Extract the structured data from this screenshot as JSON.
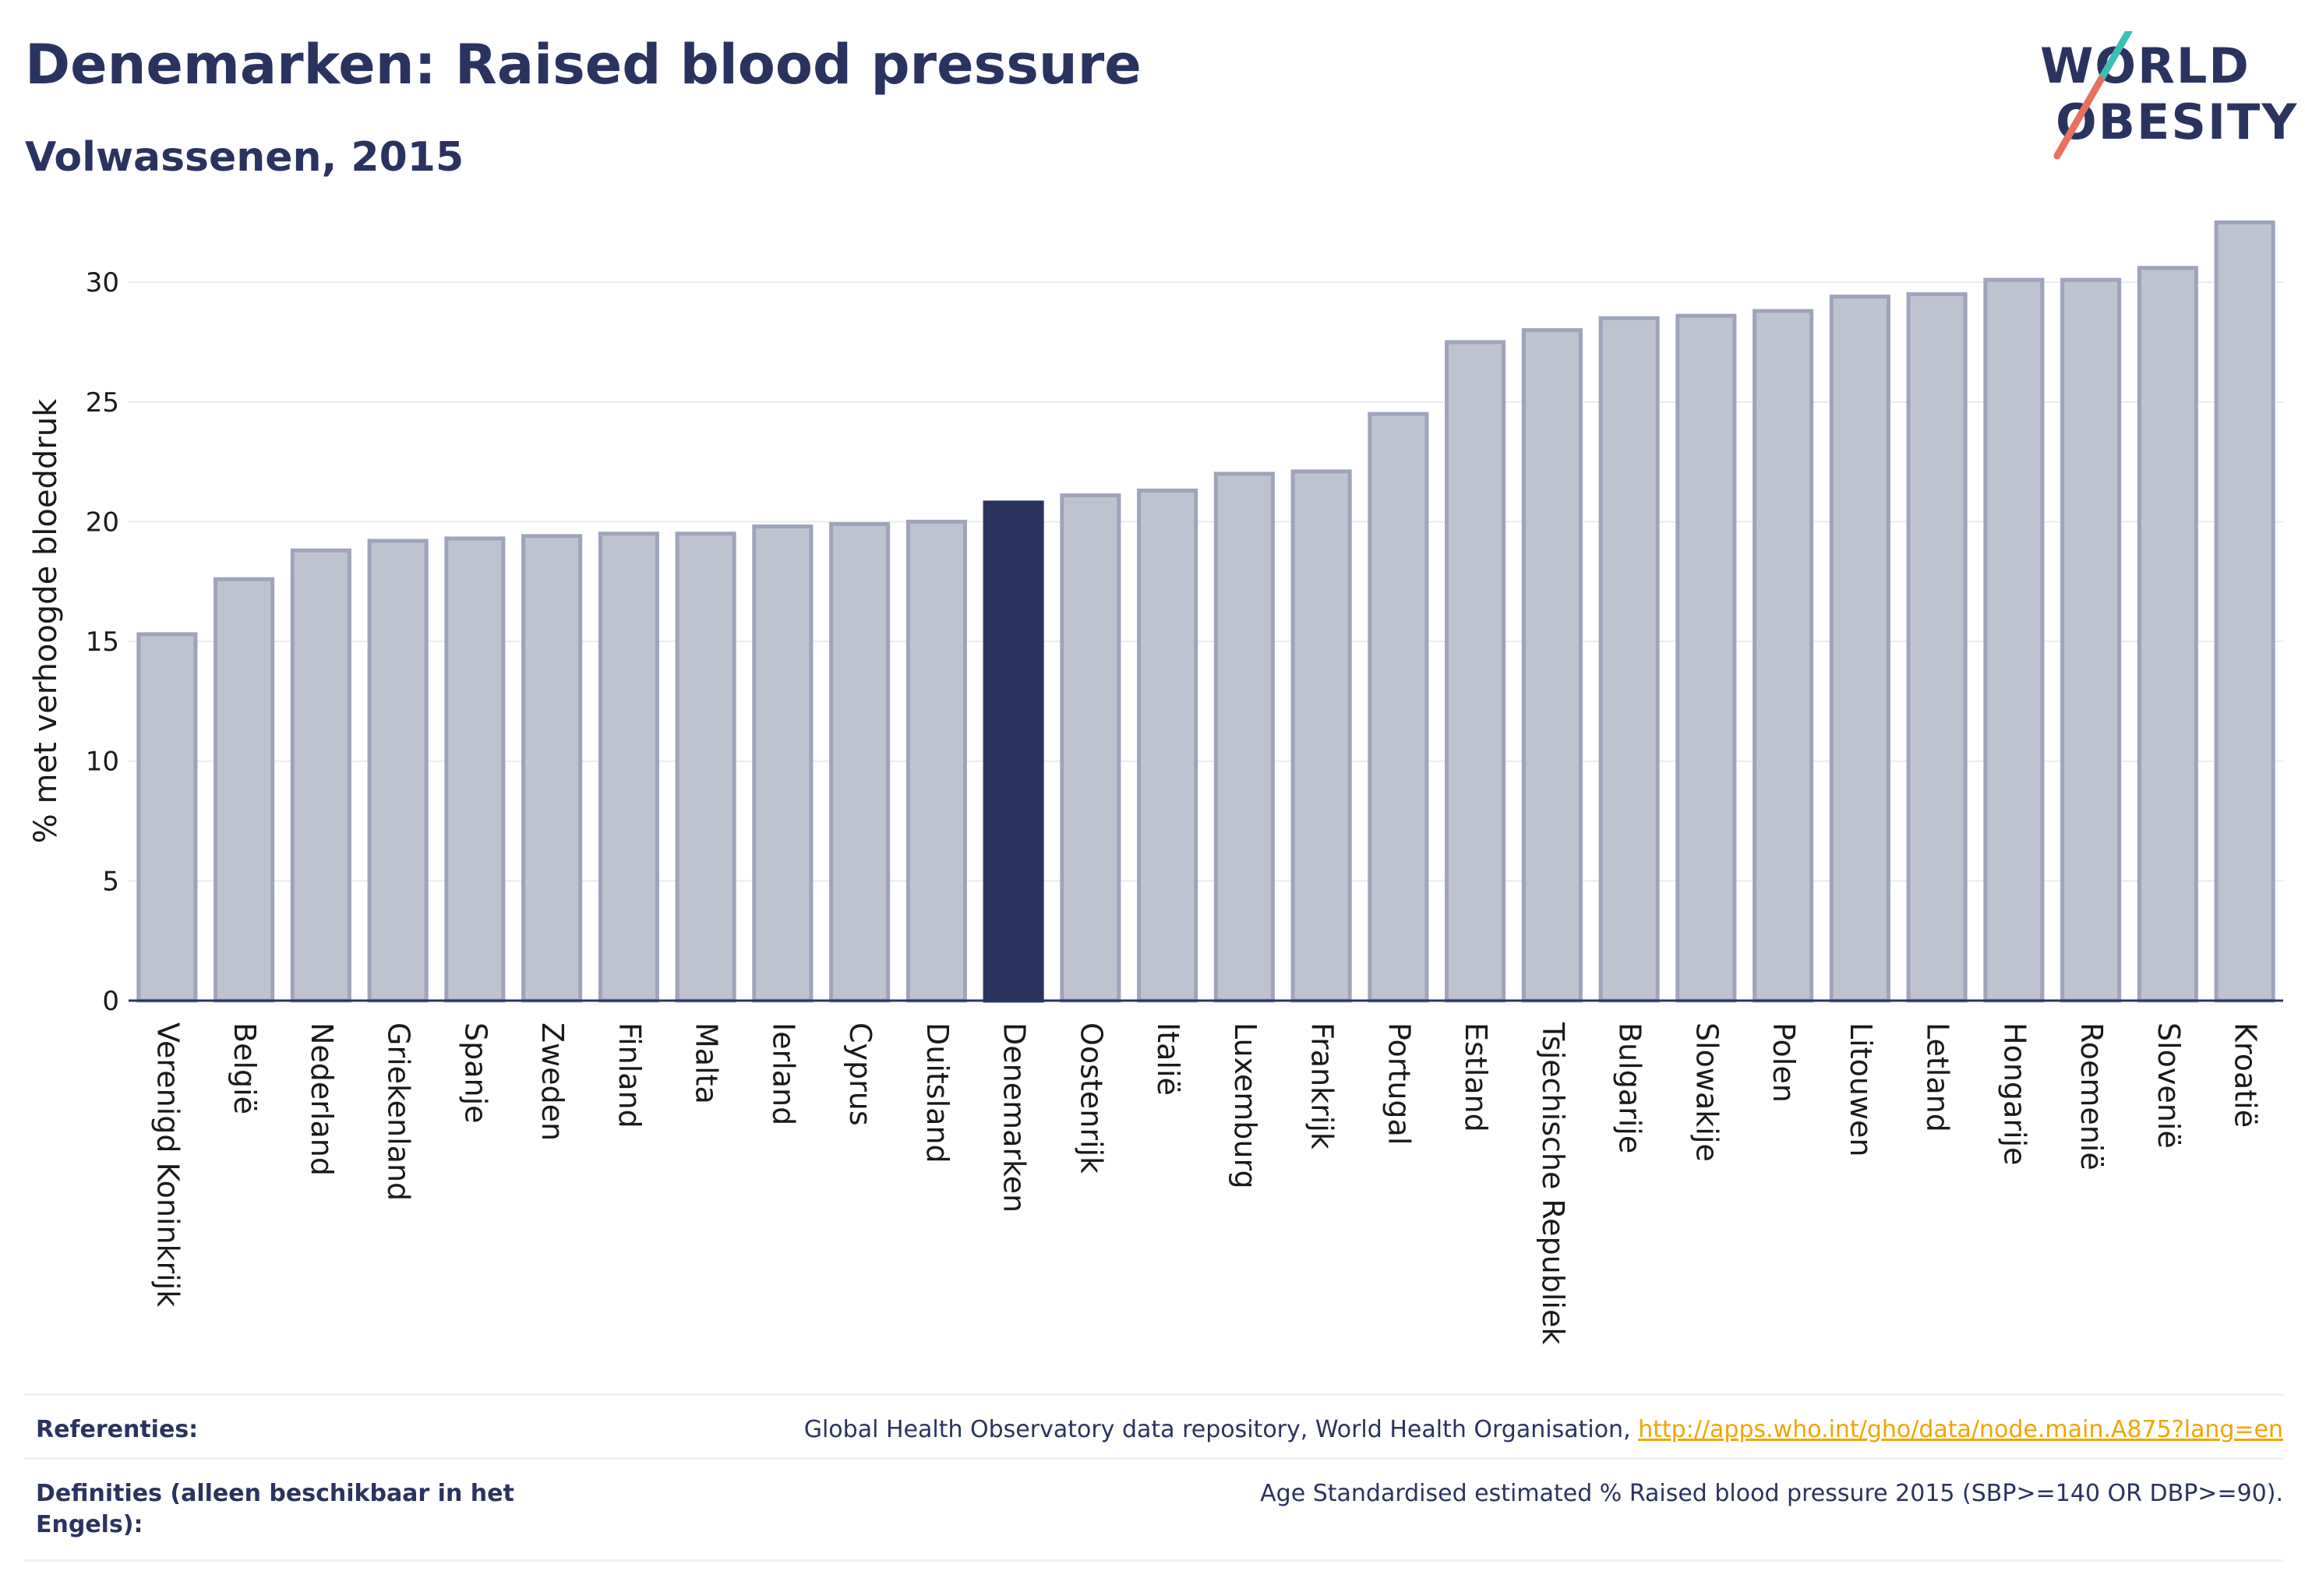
{
  "header": {
    "title": "Denemarken: Raised blood pressure",
    "subtitle": "Volwassenen, 2015"
  },
  "logo": {
    "line1": "WORLD",
    "line2": "OBESITY",
    "accent_teal": "#3bbfb5",
    "accent_coral": "#e8705f"
  },
  "colors": {
    "bar": "#bfc3d0",
    "bar_border": "#9ea4bb",
    "highlight": "#2a3360",
    "text": "#2a3360"
  },
  "chart_data": {
    "type": "bar",
    "ylabel": "% met verhoogde bloeddruk",
    "ylim": [
      0,
      33
    ],
    "yticks": [
      0,
      5,
      10,
      15,
      20,
      25,
      30
    ],
    "grid": true,
    "highlight": "Denemarken",
    "categories": [
      "Verenigd Koninkrijk",
      "België",
      "Nederland",
      "Griekenland",
      "Spanje",
      "Zweden",
      "Finland",
      "Malta",
      "Ierland",
      "Cyprus",
      "Duitsland",
      "Denemarken",
      "Oostenrijk",
      "Italië",
      "Luxemburg",
      "Frankrijk",
      "Portugal",
      "Estland",
      "Tsjechische Republiek",
      "Bulgarije",
      "Slowakije",
      "Polen",
      "Litouwen",
      "Letland",
      "Hongarije",
      "Roemenië",
      "Slovenië",
      "Kroatië"
    ],
    "values": [
      15.3,
      17.6,
      18.8,
      19.2,
      19.3,
      19.4,
      19.5,
      19.5,
      19.8,
      19.9,
      20.0,
      20.8,
      21.1,
      21.3,
      22.0,
      22.1,
      24.5,
      27.5,
      28.0,
      28.5,
      28.6,
      28.8,
      29.4,
      29.5,
      30.1,
      30.1,
      30.6,
      32.5
    ]
  },
  "footer": {
    "references_label": "Referenties:",
    "references_text": "Global Health Observatory data repository, World Health Organisation, ",
    "references_link": "http://apps.who.int/gho/data/node.main.A875?lang=en",
    "definitions_label": "Definities (alleen beschikbaar in het Engels):",
    "definitions_text": "Age Standardised estimated % Raised blood pressure 2015 (SBP>=140 OR DBP>=90)."
  }
}
